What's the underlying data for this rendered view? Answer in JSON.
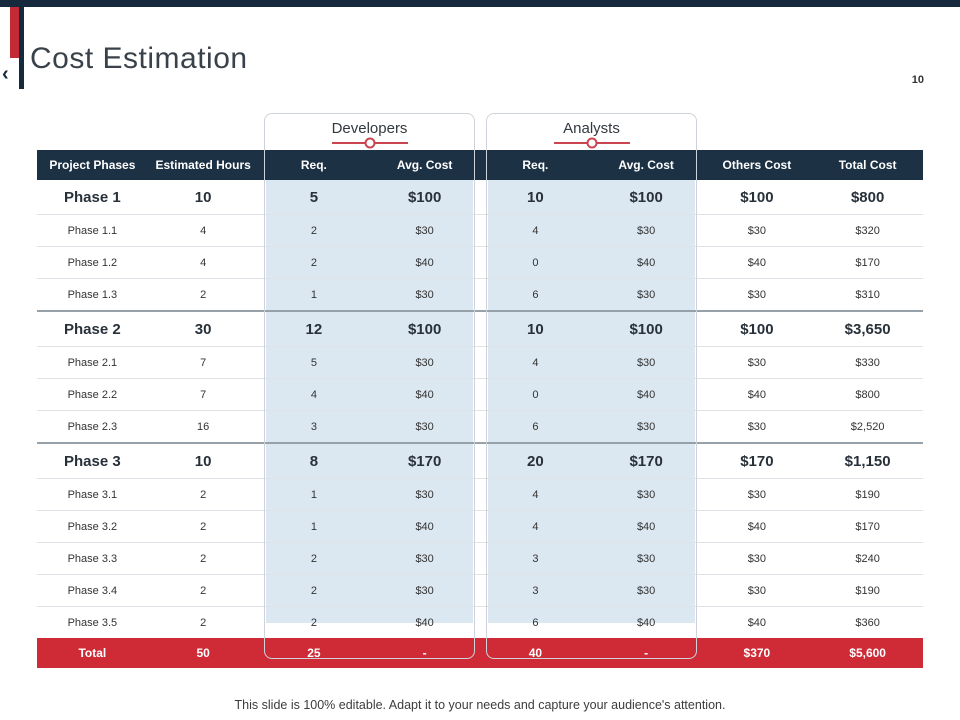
{
  "slide": {
    "title": "Cost Estimation",
    "page_number": "10",
    "back_chevron": "‹",
    "footer": "This slide is 100% editable. Adapt it to your needs and capture your audience's attention."
  },
  "colors": {
    "header_navy": "#1d3144",
    "total_red": "#ce2b37",
    "group_tint_blue": "#dce8f1",
    "accent_red": "#c22a35"
  },
  "table": {
    "groups": [
      {
        "label": "Developers"
      },
      {
        "label": "Analysts"
      }
    ],
    "columns": [
      "Project Phases",
      "Estimated Hours",
      "Req.",
      "Avg. Cost",
      "Req.",
      "Avg. Cost",
      "Others Cost",
      "Total Cost"
    ],
    "rows": [
      {
        "type": "phase",
        "cells": [
          "Phase 1",
          "10",
          "5",
          "$100",
          "10",
          "$100",
          "$100",
          "$800"
        ]
      },
      {
        "type": "sub",
        "cells": [
          "Phase 1.1",
          "4",
          "2",
          "$30",
          "4",
          "$30",
          "$30",
          "$320"
        ]
      },
      {
        "type": "sub",
        "cells": [
          "Phase 1.2",
          "4",
          "2",
          "$40",
          "0",
          "$40",
          "$40",
          "$170"
        ]
      },
      {
        "type": "sub",
        "cells": [
          "Phase 1.3",
          "2",
          "1",
          "$30",
          "6",
          "$30",
          "$30",
          "$310"
        ]
      },
      {
        "type": "phase",
        "cells": [
          "Phase 2",
          "30",
          "12",
          "$100",
          "10",
          "$100",
          "$100",
          "$3,650"
        ]
      },
      {
        "type": "sub",
        "cells": [
          "Phase 2.1",
          "7",
          "5",
          "$30",
          "4",
          "$30",
          "$30",
          "$330"
        ]
      },
      {
        "type": "sub",
        "cells": [
          "Phase 2.2",
          "7",
          "4",
          "$40",
          "0",
          "$40",
          "$40",
          "$800"
        ]
      },
      {
        "type": "sub",
        "cells": [
          "Phase 2.3",
          "16",
          "3",
          "$30",
          "6",
          "$30",
          "$30",
          "$2,520"
        ]
      },
      {
        "type": "phase",
        "cells": [
          "Phase 3",
          "10",
          "8",
          "$170",
          "20",
          "$170",
          "$170",
          "$1,150"
        ]
      },
      {
        "type": "sub",
        "cells": [
          "Phase 3.1",
          "2",
          "1",
          "$30",
          "4",
          "$30",
          "$30",
          "$190"
        ]
      },
      {
        "type": "sub",
        "cells": [
          "Phase 3.2",
          "2",
          "1",
          "$40",
          "4",
          "$40",
          "$40",
          "$170"
        ]
      },
      {
        "type": "sub",
        "cells": [
          "Phase 3.3",
          "2",
          "2",
          "$30",
          "3",
          "$30",
          "$30",
          "$240"
        ]
      },
      {
        "type": "sub",
        "cells": [
          "Phase 3.4",
          "2",
          "2",
          "$30",
          "3",
          "$30",
          "$30",
          "$190"
        ]
      },
      {
        "type": "sub",
        "cells": [
          "Phase 3.5",
          "2",
          "2",
          "$40",
          "6",
          "$40",
          "$40",
          "$360"
        ]
      }
    ],
    "total": [
      "Total",
      "50",
      "25",
      "-",
      "40",
      "-",
      "$370",
      "$5,600"
    ]
  }
}
